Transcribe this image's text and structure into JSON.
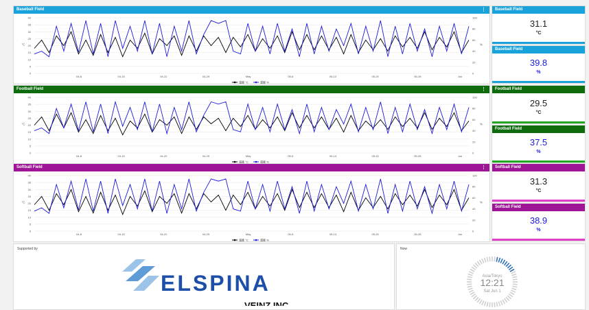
{
  "colors": {
    "baseball": "#1aa3db",
    "football": "#0e6b0e",
    "softball": "#9e1595",
    "temp": "#000000",
    "hum": "#1a1adb"
  },
  "x_ticks": [
    "04-8",
    "04-15",
    "04-22",
    "04-29",
    "May",
    "05-6",
    "05-13",
    "05-20",
    "05-28",
    "Jun"
  ],
  "legend": {
    "temp": "温度 °C",
    "hum": "湿度 %"
  },
  "axis": {
    "left_unit": "°C",
    "right_unit": "%",
    "left_ticks": [
      "0",
      "5",
      "10",
      "15",
      "20",
      "25",
      "30",
      "35",
      "40"
    ],
    "right_ticks": [
      "0",
      "20",
      "40",
      "60",
      "80",
      "100"
    ]
  },
  "sections": [
    {
      "id": "baseball",
      "title": "Baseball Field",
      "temp": "31.1",
      "hum": "39.8",
      "temp_unit": "°C",
      "hum_unit": "%"
    },
    {
      "id": "football",
      "title": "Football Field",
      "temp": "29.5",
      "hum": "37.5",
      "temp_unit": "°C",
      "hum_unit": "%"
    },
    {
      "id": "softball",
      "title": "Softball Field",
      "temp": "31.3",
      "hum": "38.9",
      "temp_unit": "°C",
      "hum_unit": "%"
    }
  ],
  "footer": {
    "supported_label": "Supported by",
    "logo_name": "ELSPINA",
    "logo_sub": "VEINZ INC.",
    "now_label": "Now",
    "clock_tz": "Asia/Tokyo",
    "clock_time": "12:21",
    "clock_date": "Sat Jun 1"
  },
  "chart_data": [
    {
      "type": "line",
      "title": "Baseball Field",
      "ylabel_left": "°C",
      "ylabel_right": "%",
      "ylim_left": [
        0,
        40
      ],
      "ylim_right": [
        0,
        100
      ],
      "series": [
        {
          "name": "温度 °C",
          "axis": "left",
          "values": [
            18,
            24,
            15,
            27,
            20,
            30,
            14,
            24,
            13,
            28,
            15,
            26,
            12,
            24,
            18,
            29,
            14,
            25,
            20,
            27,
            13,
            27,
            16,
            27,
            20,
            26,
            15,
            26,
            19,
            28,
            16,
            25,
            18,
            27,
            15,
            30,
            17,
            28,
            17,
            27,
            17,
            26,
            14,
            28,
            15,
            24,
            17,
            25,
            16,
            27,
            19,
            26,
            18,
            30,
            17,
            26,
            19,
            30,
            15,
            24
          ]
        },
        {
          "name": "湿度 %",
          "axis": "right",
          "values": [
            35,
            40,
            30,
            85,
            40,
            90,
            38,
            95,
            35,
            90,
            30,
            95,
            45,
            85,
            40,
            95,
            35,
            90,
            30,
            85,
            40,
            95,
            35,
            70,
            95,
            90,
            95,
            40,
            35,
            90,
            40,
            85,
            35,
            90,
            40,
            80,
            30,
            90,
            35,
            85,
            40,
            80,
            50,
            90,
            35,
            85,
            40,
            95,
            30,
            85,
            35,
            90,
            40,
            80,
            30,
            85,
            40,
            90,
            35,
            85
          ]
        }
      ]
    },
    {
      "type": "line",
      "title": "Football Field",
      "ylabel_left": "°C",
      "ylabel_right": "%",
      "ylim_left": [
        0,
        40
      ],
      "ylim_right": [
        0,
        100
      ],
      "series": [
        {
          "name": "温度 °C",
          "axis": "left",
          "values": [
            20,
            26,
            16,
            28,
            18,
            29,
            15,
            24,
            14,
            27,
            16,
            25,
            13,
            23,
            18,
            28,
            15,
            24,
            20,
            26,
            14,
            26,
            17,
            26,
            21,
            25,
            16,
            25,
            19,
            27,
            17,
            24,
            18,
            26,
            16,
            29,
            18,
            27,
            18,
            26,
            17,
            25,
            15,
            27,
            16,
            23,
            18,
            24,
            17,
            26,
            19,
            25,
            18,
            29,
            17,
            25,
            19,
            29,
            16,
            23
          ]
        },
        {
          "name": "湿度 %",
          "axis": "right",
          "values": [
            40,
            45,
            35,
            80,
            45,
            88,
            40,
            92,
            38,
            88,
            35,
            92,
            48,
            82,
            42,
            92,
            38,
            88,
            35,
            82,
            42,
            92,
            38,
            68,
            92,
            88,
            92,
            42,
            38,
            88,
            42,
            82,
            38,
            88,
            42,
            78,
            35,
            88,
            38,
            82,
            42,
            78,
            52,
            88,
            38,
            82,
            42,
            92,
            35,
            82,
            38,
            88,
            42,
            78,
            35,
            82,
            42,
            88,
            38,
            82
          ]
        }
      ]
    },
    {
      "type": "line",
      "title": "Softball Field",
      "ylabel_left": "°C",
      "ylabel_right": "%",
      "ylim_left": [
        0,
        40
      ],
      "ylim_right": [
        0,
        100
      ],
      "series": [
        {
          "name": "温度 °C",
          "axis": "left",
          "values": [
            19,
            25,
            15,
            27,
            19,
            30,
            14,
            25,
            13,
            28,
            15,
            26,
            12,
            25,
            18,
            29,
            14,
            25,
            20,
            27,
            13,
            27,
            16,
            27,
            21,
            26,
            15,
            26,
            19,
            28,
            16,
            25,
            18,
            27,
            15,
            30,
            17,
            28,
            17,
            27,
            17,
            26,
            14,
            28,
            15,
            24,
            17,
            25,
            16,
            27,
            19,
            26,
            18,
            30,
            17,
            26,
            19,
            30,
            15,
            24
          ]
        },
        {
          "name": "湿度 %",
          "axis": "right",
          "values": [
            36,
            42,
            32,
            84,
            42,
            90,
            38,
            94,
            36,
            90,
            32,
            94,
            46,
            84,
            40,
            94,
            36,
            90,
            32,
            84,
            40,
            94,
            36,
            70,
            94,
            90,
            94,
            40,
            36,
            90,
            40,
            84,
            36,
            90,
            40,
            80,
            32,
            90,
            36,
            84,
            40,
            80,
            50,
            90,
            36,
            84,
            40,
            94,
            32,
            84,
            36,
            90,
            40,
            80,
            32,
            84,
            40,
            90,
            36,
            84
          ]
        }
      ]
    }
  ]
}
